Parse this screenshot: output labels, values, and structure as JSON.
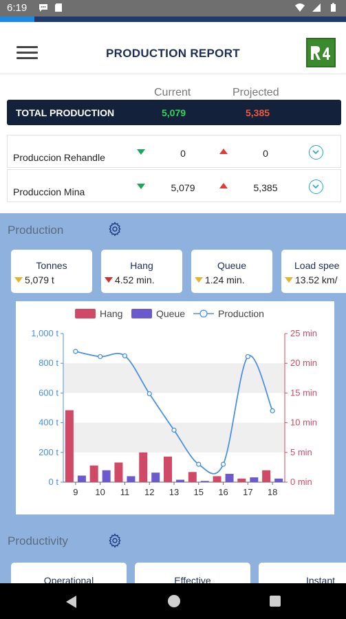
{
  "status_bar": {
    "time": "6:19",
    "left_icons": [
      "chat-icon",
      "sd-card-icon"
    ],
    "right_icons": [
      "wifi-icon",
      "signal-icon",
      "battery-icon"
    ],
    "loading_progress_pct": 10
  },
  "header": {
    "title": "PRODUCTION REPORT",
    "menu_icon": "hamburger-menu-icon",
    "logo_icon": "r4m-logo-icon"
  },
  "summary": {
    "col_current": "Current",
    "col_projected": "Projected",
    "total": {
      "label": "TOTAL PRODUCTION",
      "current": "5,079",
      "projected": "5,385"
    },
    "rows": [
      {
        "label": "Produccion Rehandle",
        "current": "0",
        "projected": "0",
        "current_trend": "down",
        "projected_trend": "up"
      },
      {
        "label": "Produccion Mina",
        "current": "5,079",
        "projected": "5,385",
        "current_trend": "down",
        "projected_trend": "up"
      }
    ],
    "colors": {
      "current": "#33d45a",
      "projected": "#ef5a3a",
      "bar": "#14213a"
    }
  },
  "production": {
    "section_title": "Production",
    "cards": [
      {
        "title": "Tonnes",
        "value": "5,079 t",
        "trend": "down",
        "trend_color": "#e8b42a"
      },
      {
        "title": "Hang",
        "value": "4.52 min.",
        "trend": "down",
        "trend_color": "#d32f2f"
      },
      {
        "title": "Queue",
        "value": "1.24 min.",
        "trend": "down",
        "trend_color": "#e8b42a"
      },
      {
        "title": "Load spee",
        "value": "13.52 km/",
        "trend": "down",
        "trend_color": "#e8b42a"
      }
    ]
  },
  "chart_data": {
    "type": "bar",
    "categories": [
      "9",
      "10",
      "11",
      "12",
      "13",
      "15",
      "16",
      "17",
      "18"
    ],
    "series": [
      {
        "name": "Hang",
        "type": "bar",
        "axis": "right",
        "color": "#d04a68",
        "values": [
          12.1,
          2.8,
          3.3,
          5.0,
          4.3,
          1.7,
          1.0,
          0.6,
          2.0
        ]
      },
      {
        "name": "Queue",
        "type": "bar",
        "axis": "right",
        "color": "#6a5acd",
        "values": [
          1.1,
          2.0,
          1.0,
          1.6,
          0.4,
          0.2,
          1.4,
          0.8,
          0.6
        ]
      },
      {
        "name": "Production",
        "type": "line",
        "axis": "left",
        "color": "#4a90e2",
        "values": [
          880,
          845,
          850,
          595,
          350,
          120,
          120,
          845,
          480
        ]
      }
    ],
    "left_axis": {
      "ticks": [
        "0 t",
        "200 t",
        "400 t",
        "600 t",
        "800 t",
        "1,000 t"
      ],
      "min": 0,
      "max": 1000,
      "color": "#4a90e2"
    },
    "right_axis": {
      "ticks": [
        "0 min",
        "5 min",
        "10 min",
        "15 min",
        "20 min",
        "25 min"
      ],
      "min": 0,
      "max": 25,
      "color": "#d04a68"
    },
    "legend": "top",
    "grid": "horizontal bands"
  },
  "productivity": {
    "section_title": "Productivity",
    "cards": [
      {
        "title": "Operational"
      },
      {
        "title": "Effective"
      },
      {
        "title": "Instant"
      }
    ]
  },
  "nav": {
    "back_icon": "back-icon",
    "home_icon": "home-icon",
    "recent_icon": "recent-apps-icon"
  }
}
